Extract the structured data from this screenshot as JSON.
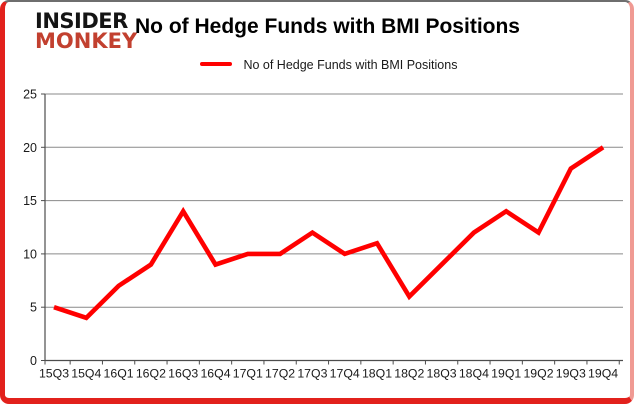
{
  "logo": {
    "line1": "INSIDER",
    "line2": "MONKEY"
  },
  "header": {
    "title": "No of Hedge Funds with BMI Positions"
  },
  "legend": {
    "label": "No of Hedge Funds with BMI Positions",
    "marker": "red-line-swatch"
  },
  "colors": {
    "line": "#ff0000",
    "grid": "#8a8a8a",
    "axis": "#4d4d4d",
    "text": "#1a1a1a",
    "frame_red": "#e2211c",
    "logo_black": "#141414",
    "logo_red": "#c2402f"
  },
  "chart_data": {
    "type": "line",
    "title": "No of Hedge Funds with BMI Positions",
    "series_name": "No of Hedge Funds with BMI Positions",
    "categories": [
      "15Q3",
      "15Q4",
      "16Q1",
      "16Q2",
      "16Q3",
      "16Q4",
      "17Q1",
      "17Q2",
      "17Q3",
      "17Q4",
      "18Q1",
      "18Q2",
      "18Q3",
      "18Q4",
      "19Q1",
      "19Q2",
      "19Q3",
      "19Q4"
    ],
    "values": [
      5,
      4,
      7,
      9,
      14,
      9,
      10,
      10,
      12,
      10,
      11,
      6,
      9,
      12,
      14,
      12,
      18,
      20
    ],
    "xlabel": "",
    "ylabel": "",
    "ylim": [
      0,
      25
    ],
    "yticks": [
      0,
      5,
      10,
      15,
      20,
      25
    ],
    "grid": "horizontal",
    "legend_position": "top"
  }
}
